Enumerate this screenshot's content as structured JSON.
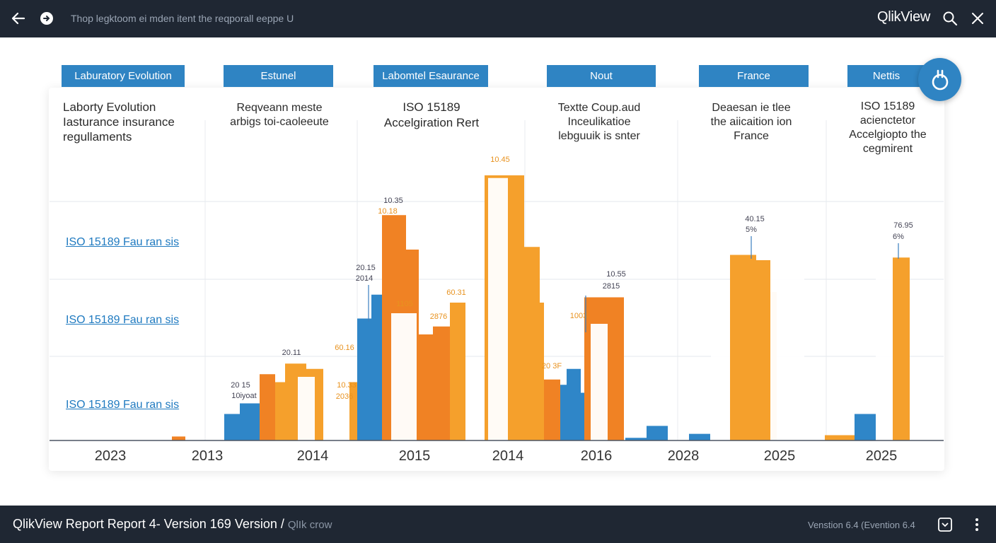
{
  "topbar": {
    "breadcrumb": "Thop legktoom ei mden itent the reqporall eeppe U",
    "brand": "QlikView",
    "back_icon": "arrow-left-icon",
    "nav_icon": "circle-arrow-icon",
    "search_icon": "search-icon",
    "close_icon": "close-icon"
  },
  "tabs": [
    "Laburatory Evolution",
    "Estunel",
    "Labomtel Esaurance",
    "Nout",
    "France",
    "Nettis"
  ],
  "column_headers": [
    "Laborty Evolution\nIasturance insurance\nregullaments",
    "Reqveann meste\narbigs toi-caoleeute",
    "ISO 15189\nAccelgiration Rert",
    "Textte Coup.aud\nInceulikatioe\nlebguuik is snter",
    "Deaesan ie tlee\nthe aiicaition ion\nFrance",
    "ISO 15189\nacienctetor\nAccelgiopto the\ncegmirent"
  ],
  "side_links": [
    "ISO 15189 Fau ran sis",
    "ISO 15189 Fau ran sis",
    "ISO 15189 Fau ran sis"
  ],
  "colors": {
    "blue": "#2f86c8",
    "orange": "#f08224",
    "amber": "#f5a02c",
    "white_bar": "#ffffff",
    "dark": "#1f2733"
  },
  "chart_data": {
    "type": "bar",
    "ylim": [
      0,
      100
    ],
    "grid": true,
    "x_labels": [
      "2023",
      "2013",
      "2014",
      "2015",
      "2014",
      "2016",
      "2028",
      "2025",
      "2025"
    ],
    "value_labels": [
      "10.45",
      "10.35",
      "10.18",
      "20.15",
      "2014",
      "60.31",
      "1105",
      "2876",
      "20.11",
      "60.16",
      "10.33",
      "2036",
      "20 15",
      "10iyoat",
      "10.55",
      "2815",
      "1003",
      "20 3F",
      "40.15",
      "5%",
      "76.95",
      "6%"
    ],
    "bars": [
      {
        "x": 243,
        "w": 19,
        "value": 1.5,
        "series": "orange"
      },
      {
        "x": 317,
        "w": 22,
        "value": 10,
        "series": "blue"
      },
      {
        "x": 339,
        "w": 28,
        "value": 14,
        "series": "blue"
      },
      {
        "x": 367,
        "w": 22,
        "value": 25,
        "series": "orange"
      },
      {
        "x": 389,
        "w": 14,
        "value": 22,
        "series": "amber"
      },
      {
        "x": 403,
        "w": 30,
        "value": 29,
        "series": "amber"
      },
      {
        "x": 433,
        "w": 24,
        "value": 27,
        "series": "amber"
      },
      {
        "x": 494,
        "w": 11,
        "value": 22,
        "series": "amber"
      },
      {
        "x": 505,
        "w": 20,
        "value": 46,
        "series": "blue"
      },
      {
        "x": 525,
        "w": 15,
        "value": 55,
        "series": "blue"
      },
      {
        "x": 540,
        "w": 34,
        "value": 85,
        "series": "orange"
      },
      {
        "x": 574,
        "w": 18,
        "value": 72,
        "series": "orange"
      },
      {
        "x": 592,
        "w": 20,
        "value": 40,
        "series": "orange"
      },
      {
        "x": 612,
        "w": 24,
        "value": 43,
        "series": "orange"
      },
      {
        "x": 636,
        "w": 22,
        "value": 52,
        "series": "amber"
      },
      {
        "x": 685,
        "w": 56,
        "value": 100,
        "series": "amber"
      },
      {
        "x": 741,
        "w": 22,
        "value": 73,
        "series": "amber"
      },
      {
        "x": 763,
        "w": 6,
        "value": 52,
        "series": "amber"
      },
      {
        "x": 769,
        "w": 23,
        "value": 23,
        "series": "orange"
      },
      {
        "x": 792,
        "w": 9,
        "value": 21,
        "series": "blue"
      },
      {
        "x": 801,
        "w": 20,
        "value": 27,
        "series": "blue"
      },
      {
        "x": 821,
        "w": 12,
        "value": 18,
        "series": "blue"
      },
      {
        "x": 826,
        "w": 56,
        "value": 54,
        "series": "orange"
      },
      {
        "x": 884,
        "w": 30,
        "value": 1,
        "series": "blue"
      },
      {
        "x": 914,
        "w": 30,
        "value": 5.5,
        "series": "blue"
      },
      {
        "x": 974,
        "w": 30,
        "value": 2.5,
        "series": "blue"
      },
      {
        "x": 1032,
        "w": 37,
        "value": 70,
        "series": "amber"
      },
      {
        "x": 1069,
        "w": 20,
        "value": 68,
        "series": "amber"
      },
      {
        "x": 1089,
        "w": 9,
        "value": 56,
        "series": "amber"
      },
      {
        "x": 1166,
        "w": 42,
        "value": 2,
        "series": "amber"
      },
      {
        "x": 1208,
        "w": 30,
        "value": 10,
        "series": "blue"
      },
      {
        "x": 1262,
        "w": 24,
        "value": 69,
        "series": "amber"
      }
    ]
  },
  "bottombar": {
    "title": "QlikView Report Report 4- Version 169 Version /",
    "subtitle": "QlIk crow",
    "version": "Venstion 6.4 (Evention 6.4",
    "app_icon": "app-window-icon",
    "more_icon": "more-vertical-icon"
  }
}
